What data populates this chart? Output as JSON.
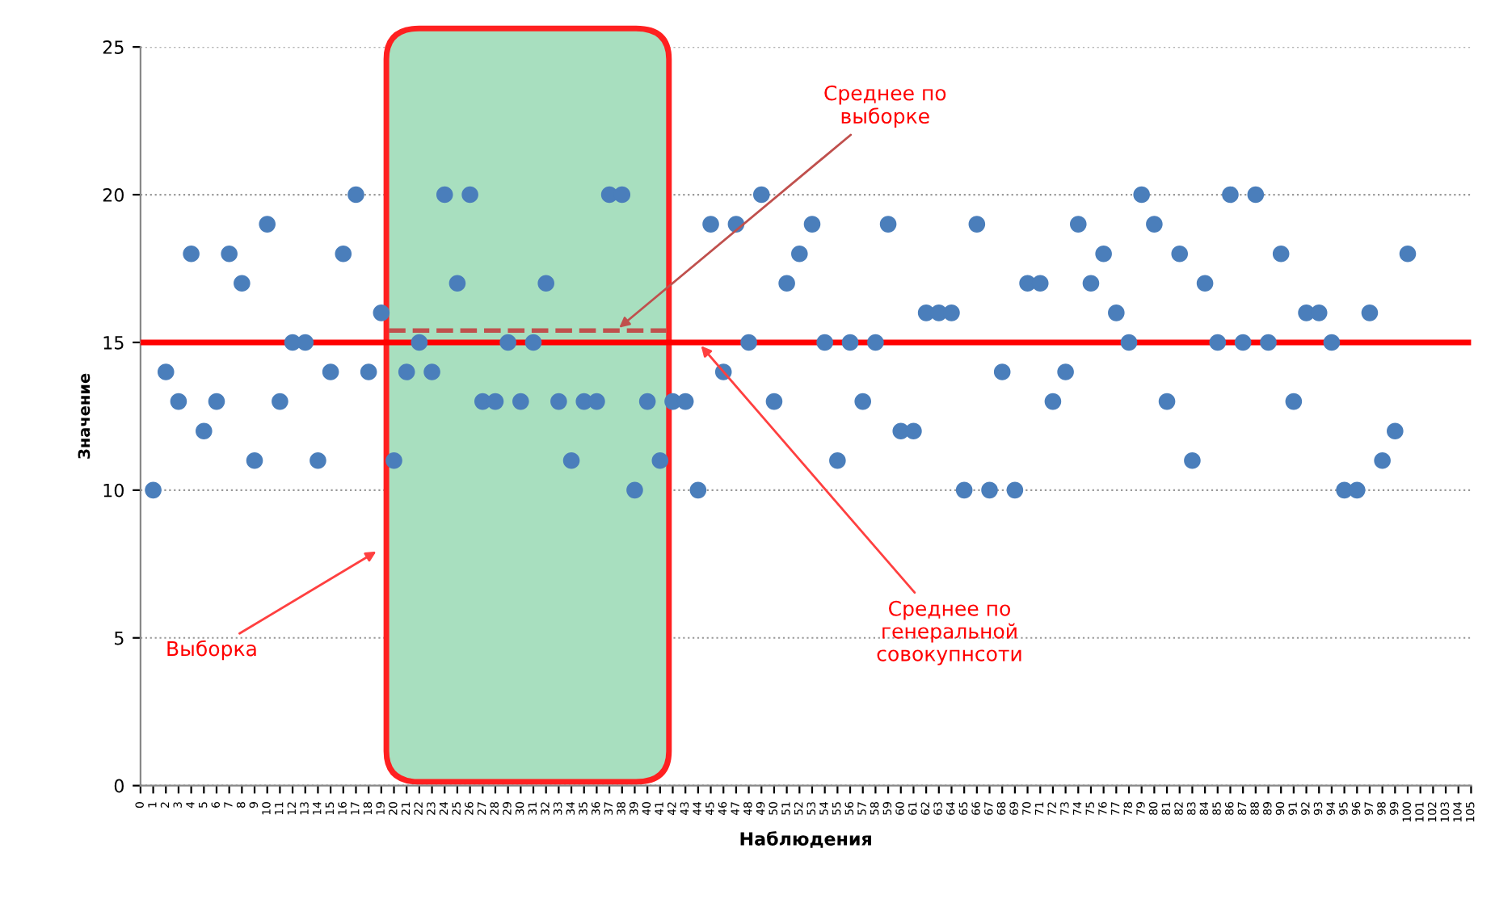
{
  "chart_data": {
    "type": "scatter",
    "xlabel": "Наблюдения",
    "ylabel": "Значение",
    "grid": "y",
    "legend": false,
    "xlim": [
      0,
      105
    ],
    "ylim": [
      0,
      25
    ],
    "yticks": [
      0,
      5,
      10,
      15,
      20,
      25
    ],
    "xticks": [
      0,
      1,
      2,
      3,
      4,
      5,
      6,
      7,
      8,
      9,
      10,
      11,
      12,
      13,
      14,
      15,
      16,
      17,
      18,
      19,
      20,
      21,
      22,
      23,
      24,
      25,
      26,
      27,
      28,
      29,
      30,
      31,
      32,
      33,
      34,
      35,
      36,
      37,
      38,
      39,
      40,
      41,
      42,
      43,
      44,
      45,
      46,
      47,
      48,
      49,
      50,
      51,
      52,
      53,
      54,
      55,
      56,
      57,
      58,
      59,
      60,
      61,
      62,
      63,
      64,
      65,
      66,
      67,
      68,
      69,
      70,
      71,
      72,
      73,
      74,
      75,
      76,
      77,
      78,
      79,
      80,
      81,
      82,
      83,
      84,
      85,
      86,
      87,
      88,
      89,
      90,
      91,
      92,
      93,
      94,
      95,
      96,
      97,
      98,
      99,
      100,
      101,
      102,
      103,
      104,
      105
    ],
    "series": [
      {
        "marker": "circle",
        "color": "#4a7ebb",
        "x": [
          1,
          2,
          3,
          4,
          5,
          6,
          7,
          8,
          9,
          10,
          11,
          12,
          13,
          14,
          15,
          16,
          17,
          18,
          19,
          20,
          21,
          22,
          23,
          24,
          25,
          26,
          27,
          28,
          29,
          30,
          31,
          32,
          33,
          34,
          35,
          36,
          37,
          38,
          39,
          40,
          41,
          42,
          43,
          44,
          45,
          46,
          47,
          48,
          49,
          50,
          51,
          52,
          53,
          54,
          55,
          56,
          57,
          58,
          59,
          60,
          61,
          62,
          63,
          64,
          65,
          66,
          67,
          68,
          69,
          70,
          71,
          72,
          73,
          74,
          75,
          76,
          77,
          78,
          79,
          80,
          81,
          82,
          83,
          84,
          85,
          86,
          87,
          88,
          89,
          90,
          91,
          92,
          93,
          94,
          95,
          96,
          97,
          98,
          99,
          100
        ],
        "values": [
          10,
          14,
          13,
          18,
          12,
          13,
          18,
          17,
          11,
          19,
          13,
          15,
          15,
          11,
          14,
          18,
          20,
          14,
          16,
          11,
          14,
          15,
          14,
          20,
          17,
          20,
          13,
          13,
          15,
          13,
          15,
          17,
          13,
          11,
          13,
          13,
          20,
          20,
          10,
          13,
          11,
          13,
          13,
          10,
          19,
          14,
          19,
          15,
          20,
          13,
          17,
          18,
          19,
          15,
          11,
          15,
          13,
          15,
          19,
          12,
          12,
          16,
          16,
          16,
          10,
          19,
          10,
          14,
          10,
          17,
          17,
          13,
          14,
          19,
          17,
          18,
          16,
          15,
          20,
          19,
          13,
          18,
          11,
          17,
          15,
          20,
          15,
          20,
          15,
          18,
          13,
          16,
          16,
          15,
          10,
          10,
          16,
          11,
          12,
          18
        ]
      },
      {
        "type": "line",
        "name": "Среднее по\nвыборке",
        "color": "#c0504d",
        "line_style": "dashed",
        "marker": "none",
        "x": [
          19.6,
          41.5
        ],
        "values": [
          15.4,
          15.4
        ]
      }
    ],
    "ref_lines": [
      {
        "axis": "y",
        "value": 15,
        "label": "Среднее по\nгенеральной\nсовокупнсоти",
        "color": "#ff0000"
      }
    ],
    "bands": [
      {
        "axis": "x",
        "from": 19.4,
        "to": 41.7,
        "label": "Выборка",
        "color": "#a8dfbf"
      }
    ]
  }
}
